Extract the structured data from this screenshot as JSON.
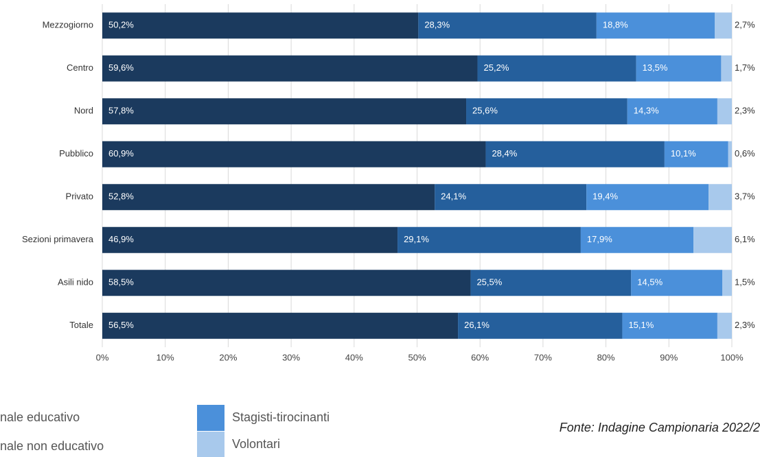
{
  "chart_data": {
    "type": "stacked-barh",
    "categories": [
      "Mezzogiorno",
      "Centro",
      "Nord",
      "Pubblico",
      "Privato",
      "Sezioni primavera",
      "Asili nido",
      "Totale"
    ],
    "series": [
      {
        "name": "nale educativo",
        "color": "#1b3a5e",
        "values": [
          50.2,
          59.6,
          57.8,
          60.9,
          52.8,
          46.9,
          58.5,
          56.5
        ],
        "value_labels": [
          "50,2%",
          "59,6%",
          "57,8%",
          "60,9%",
          "52,8%",
          "46,9%",
          "58,5%",
          "56,5%"
        ]
      },
      {
        "name": "nale non educativo",
        "color": "#255f9c",
        "values": [
          28.3,
          25.2,
          25.6,
          28.4,
          24.1,
          29.1,
          25.5,
          26.1
        ],
        "value_labels": [
          "28,3%",
          "25,2%",
          "25,6%",
          "28,4%",
          "24,1%",
          "29,1%",
          "25,5%",
          "26,1%"
        ]
      },
      {
        "name": "Stagisti-tirocinanti",
        "color": "#4b90da",
        "values": [
          18.8,
          13.5,
          14.3,
          10.1,
          19.4,
          17.9,
          14.5,
          15.1
        ],
        "value_labels": [
          "18,8%",
          "13,5%",
          "14,3%",
          "10,1%",
          "19,4%",
          "17,9%",
          "14,5%",
          "15,1%"
        ]
      },
      {
        "name": "Volontari",
        "color": "#a8c9ec",
        "values": [
          2.7,
          1.7,
          2.3,
          0.6,
          3.7,
          6.1,
          1.5,
          2.3
        ],
        "value_labels": [
          "2,7%",
          "1,7%",
          "2,3%",
          "0,6%",
          "3,7%",
          "6,1%",
          "1,5%",
          "2,3%"
        ]
      }
    ],
    "xlim": [
      0,
      100
    ],
    "xticks": [
      {
        "value": 0,
        "label": "0%"
      },
      {
        "value": 10,
        "label": "10%"
      },
      {
        "value": 20,
        "label": "20%"
      },
      {
        "value": 30,
        "label": "30%"
      },
      {
        "value": 40,
        "label": "40%"
      },
      {
        "value": 50,
        "label": "50%"
      },
      {
        "value": 60,
        "label": "60%"
      },
      {
        "value": 70,
        "label": "70%"
      },
      {
        "value": 80,
        "label": "80%"
      },
      {
        "value": 90,
        "label": "90%"
      },
      {
        "value": 100,
        "label": "100%"
      }
    ],
    "grid": true,
    "source": "Fonte: Indagine Campionaria 2022/2"
  }
}
